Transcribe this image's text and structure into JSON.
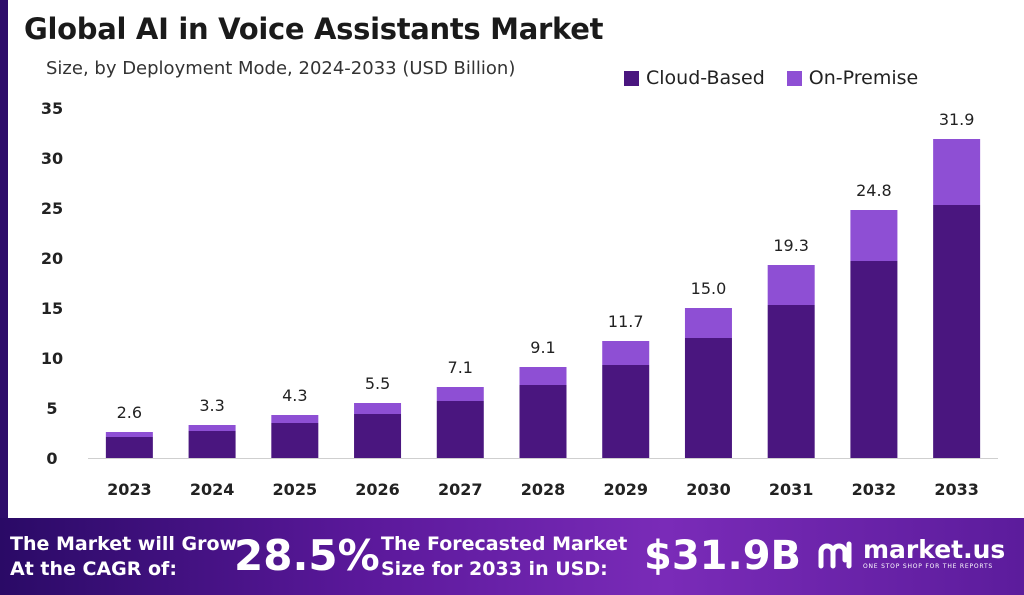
{
  "header": {
    "title": "Global AI in Voice Assistants Market",
    "subtitle": "Size, by Deployment Mode, 2024-2033 (USD Billion)"
  },
  "legend": {
    "items": [
      {
        "label": "Cloud-Based",
        "color": "#4a167f"
      },
      {
        "label": "On-Premise",
        "color": "#8e4fd4"
      }
    ]
  },
  "chart_data": {
    "type": "bar",
    "stacked": true,
    "title": "Global AI in Voice Assistants Market",
    "subtitle": "Size, by Deployment Mode, 2024-2033 (USD Billion)",
    "categories": [
      "2023",
      "2024",
      "2025",
      "2026",
      "2027",
      "2028",
      "2029",
      "2030",
      "2031",
      "2032",
      "2033"
    ],
    "series": [
      {
        "name": "Cloud-Based",
        "color": "#4a167f",
        "values": [
          2.1,
          2.7,
          3.5,
          4.4,
          5.7,
          7.3,
          9.3,
          12.0,
          15.3,
          19.7,
          25.3
        ]
      },
      {
        "name": "On-Premise",
        "color": "#8e4fd4",
        "values": [
          0.5,
          0.6,
          0.8,
          1.1,
          1.4,
          1.8,
          2.4,
          3.0,
          4.0,
          5.1,
          6.6
        ]
      }
    ],
    "totals": [
      "2.6",
      "3.3",
      "4.3",
      "5.5",
      "7.1",
      "9.1",
      "11.7",
      "15.0",
      "19.3",
      "24.8",
      "31.9"
    ],
    "yticks": [
      "0",
      "5",
      "10",
      "15",
      "20",
      "25",
      "30",
      "35"
    ],
    "ylim": [
      0,
      35
    ],
    "grid": false,
    "legend_position": "top-right",
    "xlabel": "",
    "ylabel": ""
  },
  "footer": {
    "cagr_text": "The Market will Grow At the CAGR of:",
    "cagr_value": "28.5%",
    "forecast_text": "The Forecasted Market Size for 2033 in USD:",
    "forecast_value": "$31.9B",
    "brand_name": "market.us",
    "brand_tagline": "ONE STOP SHOP FOR THE REPORTS"
  }
}
